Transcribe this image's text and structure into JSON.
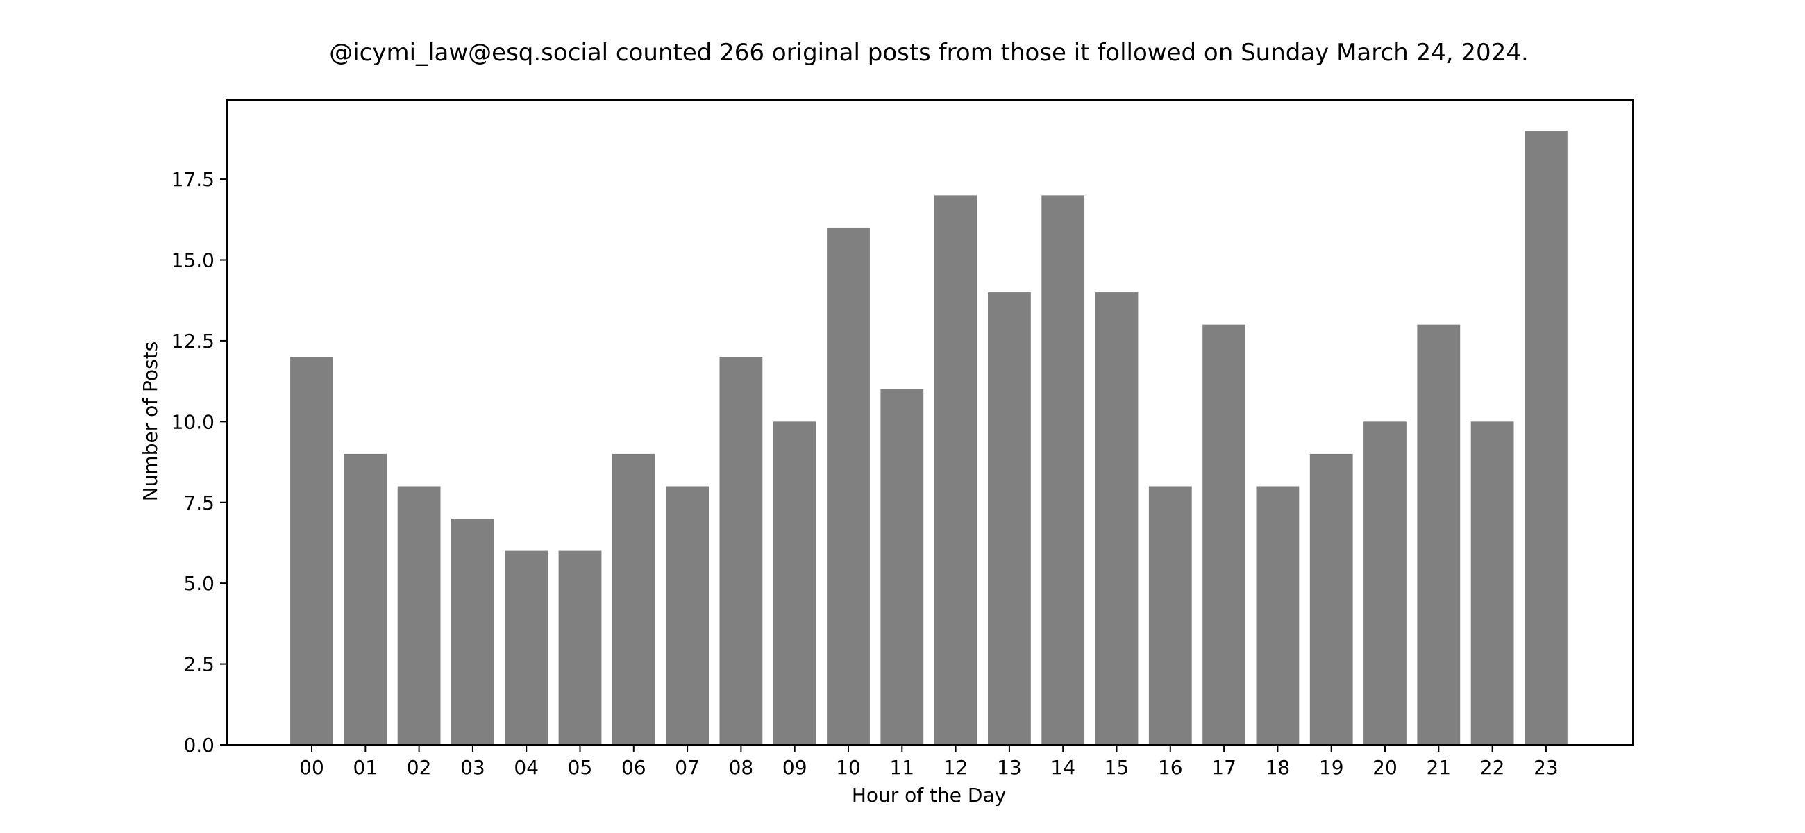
{
  "chart_data": {
    "type": "bar",
    "title": "@icymi_law@esq.social counted 266 original posts from those it followed on Sunday March 24, 2024.",
    "xlabel": "Hour of the Day",
    "ylabel": "Number of Posts",
    "categories": [
      "00",
      "01",
      "02",
      "03",
      "04",
      "05",
      "06",
      "07",
      "08",
      "09",
      "10",
      "11",
      "12",
      "13",
      "14",
      "15",
      "16",
      "17",
      "18",
      "19",
      "20",
      "21",
      "22",
      "23"
    ],
    "values": [
      12,
      9,
      8,
      7,
      6,
      6,
      9,
      8,
      12,
      10,
      16,
      11,
      17,
      14,
      17,
      14,
      8,
      13,
      8,
      9,
      10,
      13,
      10,
      19
    ],
    "ylim": [
      0,
      19.95
    ],
    "yticks": [
      0,
      2.5,
      5,
      7.5,
      10,
      12.5,
      15,
      17.5
    ],
    "ytick_labels": [
      "0.0",
      "2.5",
      "5.0",
      "7.5",
      "10.0",
      "12.5",
      "15.0",
      "17.5"
    ],
    "bar_color": "#808080",
    "grid": false,
    "legend": "none"
  }
}
